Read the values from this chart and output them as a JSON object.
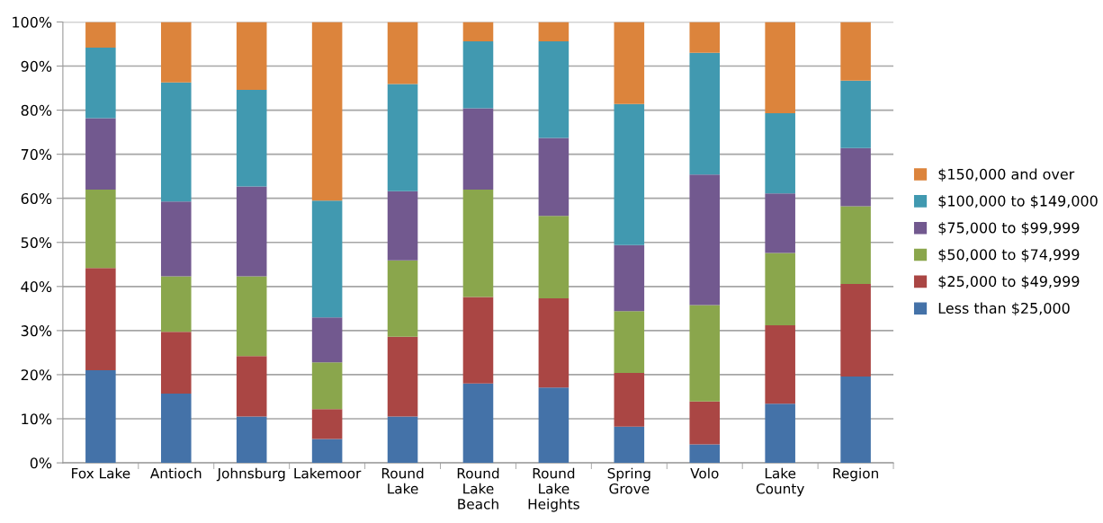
{
  "chart_data": {
    "type": "bar",
    "stacked": true,
    "categories": [
      "Fox Lake",
      "Antioch",
      "Johnsburg",
      "Lakemoor",
      "Round\nLake",
      "Round\nLake\nBeach",
      "Round\nLake\nHeights",
      "Spring\nGrove",
      "Volo",
      "Lake\nCounty",
      "Region"
    ],
    "series": [
      {
        "name": "Less than $25,000",
        "color": "#4472a8",
        "values": [
          21,
          15.7,
          10.5,
          5.4,
          10.5,
          18,
          17.1,
          8.2,
          4.2,
          13.4,
          19.6
        ]
      },
      {
        "name": "$25,000 to $49,999",
        "color": "#aa4644",
        "values": [
          23.2,
          14,
          13.7,
          6.8,
          18.1,
          19.6,
          20.2,
          12.2,
          9.7,
          17.8,
          21
        ]
      },
      {
        "name": "$50,000 to $74,999",
        "color": "#8aa64c",
        "values": [
          17.8,
          12.6,
          18.1,
          10.6,
          17.3,
          24.4,
          18.7,
          14,
          21.9,
          16.4,
          17.6
        ]
      },
      {
        "name": "$75,000 to $99,999",
        "color": "#72598f",
        "values": [
          16.2,
          17,
          20.4,
          10.2,
          15.7,
          18.4,
          17.7,
          15,
          29.6,
          13.5,
          13.2
        ]
      },
      {
        "name": "$100,000 to $149,000",
        "color": "#4199b0",
        "values": [
          16,
          27,
          21.9,
          26.5,
          24.3,
          15.2,
          21.9,
          32,
          27.6,
          18.2,
          15.3
        ]
      },
      {
        "name": "$150,000 and over",
        "color": "#dc843c",
        "values": [
          5.8,
          13.7,
          15.4,
          40.5,
          14.1,
          4.4,
          4.4,
          18.6,
          7,
          20.7,
          13.3
        ]
      }
    ],
    "ylim": [
      0,
      100
    ],
    "yticks": [
      {
        "value": 0,
        "label": "0%"
      },
      {
        "value": 10,
        "label": "10%"
      },
      {
        "value": 20,
        "label": "20%"
      },
      {
        "value": 30,
        "label": "30%"
      },
      {
        "value": 40,
        "label": "40%"
      },
      {
        "value": 50,
        "label": "50%"
      },
      {
        "value": 60,
        "label": "60%"
      },
      {
        "value": 70,
        "label": "70%"
      },
      {
        "value": 80,
        "label": "80%"
      },
      {
        "value": 90,
        "label": "90%"
      },
      {
        "value": 100,
        "label": "100%"
      }
    ],
    "grid": "y",
    "legend": "right"
  }
}
